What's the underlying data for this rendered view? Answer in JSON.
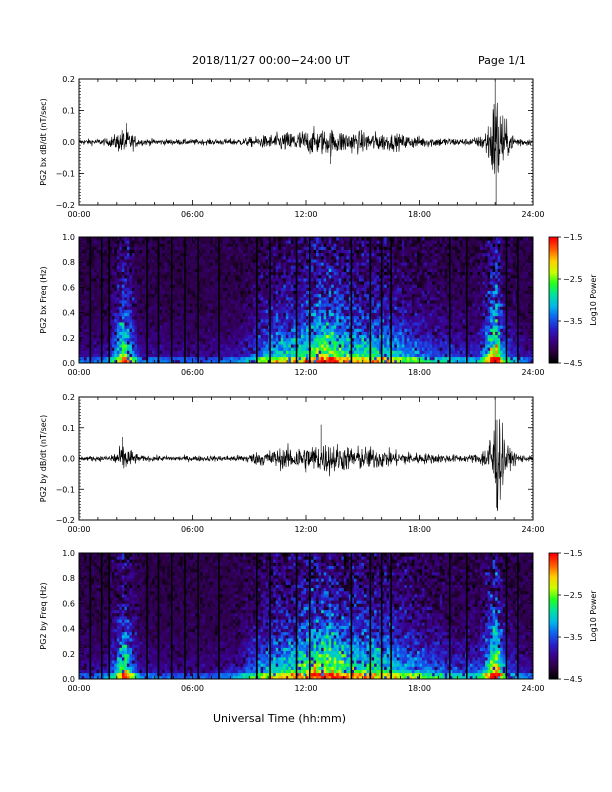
{
  "header": {
    "title": "2018/11/27  00:00−24:00 UT",
    "page": "Page 1/1",
    "xlabel": "Universal Time (hh:mm)"
  },
  "colors": {
    "spectrogram_colormap": [
      "#000000",
      "#2b0040",
      "#3a0088",
      "#2a20c8",
      "#1060f0",
      "#00b8e8",
      "#00e0a0",
      "#20ff20",
      "#c8ff00",
      "#ffd000",
      "#ff6000",
      "#ff0000"
    ]
  },
  "chart_data": [
    {
      "type": "line",
      "title": "",
      "xlabel": "",
      "ylabel": "PG2 bx dB/dt (nT/sec)",
      "xlim": [
        0,
        24
      ],
      "ylim": [
        -0.2,
        0.2
      ],
      "x_tick_labels": [
        "00:00",
        "06:00",
        "12:00",
        "18:00",
        "24:00"
      ],
      "y_tick_labels": [
        "0.2",
        "0.1",
        "0.0",
        "−0.1",
        "−0.2"
      ],
      "y_ticks": [
        0.2,
        0.1,
        0.0,
        -0.1,
        -0.2
      ],
      "envelope": {
        "hours": [
          0,
          1.5,
          2.0,
          2.4,
          2.8,
          3.2,
          5,
          7,
          8.5,
          9.5,
          10.5,
          11.5,
          12.5,
          13.3,
          14,
          15.5,
          16.5,
          18,
          19.5,
          20.5,
          21.2,
          21.6,
          21.9,
          22.1,
          22.4,
          22.8,
          23.5,
          24
        ],
        "amplitude": [
          0.01,
          0.012,
          0.03,
          0.05,
          0.03,
          0.012,
          0.01,
          0.01,
          0.012,
          0.02,
          0.03,
          0.04,
          0.045,
          0.045,
          0.04,
          0.035,
          0.03,
          0.02,
          0.015,
          0.012,
          0.02,
          0.06,
          0.15,
          0.19,
          0.1,
          0.03,
          0.015,
          0.01
        ]
      },
      "spikes": [
        {
          "hour": 22.0,
          "value": 0.19
        },
        {
          "hour": 22.05,
          "value": -0.2
        },
        {
          "hour": 13.3,
          "value": -0.07
        },
        {
          "hour": 2.5,
          "value": 0.06
        }
      ]
    },
    {
      "type": "heatmap",
      "title": "",
      "xlabel": "",
      "ylabel": "PG2 bx Freq (Hz)",
      "xlim": [
        0,
        24
      ],
      "ylim": [
        0.0,
        1.0
      ],
      "x_tick_labels": [
        "00:00",
        "06:00",
        "12:00",
        "18:00",
        "24:00"
      ],
      "y_tick_labels": [
        "1.0",
        "0.8",
        "0.6",
        "0.4",
        "0.2",
        "0.0"
      ],
      "y_ticks": [
        1.0,
        0.8,
        0.6,
        0.4,
        0.2,
        0.0
      ],
      "colorbar": {
        "label": "Log10 Power",
        "range": [
          -4.5,
          -1.5
        ],
        "tick_labels": [
          "−1.5",
          "−2.5",
          "−3.5",
          "−4.5"
        ],
        "ticks": [
          -1.5,
          -2.5,
          -3.5,
          -4.5
        ]
      },
      "activity": {
        "hours": [
          0,
          1.5,
          2.0,
          2.4,
          2.8,
          3.2,
          5,
          7,
          8.5,
          9.5,
          10.5,
          11.5,
          12.5,
          13.3,
          14,
          15.5,
          16.5,
          18,
          19.5,
          20.5,
          21.2,
          21.6,
          21.9,
          22.1,
          22.4,
          22.8,
          23.5,
          24
        ],
        "level": [
          0.15,
          0.2,
          0.5,
          0.8,
          0.5,
          0.2,
          0.15,
          0.15,
          0.2,
          0.4,
          0.55,
          0.6,
          0.75,
          0.8,
          0.65,
          0.6,
          0.55,
          0.4,
          0.3,
          0.25,
          0.3,
          0.6,
          0.85,
          0.9,
          0.5,
          0.3,
          0.2,
          0.15
        ]
      },
      "data_gaps_hours": [
        0.6,
        1.2,
        1.6,
        3.6,
        4.2,
        4.9,
        5.6,
        6.3,
        7.4,
        9.4,
        10.1,
        11.5,
        12.2,
        14.4,
        15.4,
        16.0,
        16.5,
        19.6,
        20.5,
        22.6,
        23.2
      ]
    },
    {
      "type": "line",
      "title": "",
      "xlabel": "",
      "ylabel": "PG2 by dB/dt (nT/sec)",
      "xlim": [
        0,
        24
      ],
      "ylim": [
        -0.2,
        0.2
      ],
      "x_tick_labels": [
        "00:00",
        "06:00",
        "12:00",
        "18:00",
        "24:00"
      ],
      "y_tick_labels": [
        "0.2",
        "0.1",
        "0.0",
        "−0.1",
        "−0.2"
      ],
      "y_ticks": [
        0.2,
        0.1,
        0.0,
        -0.1,
        -0.2
      ],
      "envelope": {
        "hours": [
          0,
          1.5,
          2.0,
          2.4,
          2.8,
          3.2,
          5,
          7,
          8.5,
          9.5,
          10.5,
          11.5,
          12.5,
          13.3,
          14,
          15.5,
          16.5,
          18,
          19.5,
          20.5,
          21.2,
          21.6,
          21.9,
          22.1,
          22.4,
          22.8,
          23.5,
          24
        ],
        "amplitude": [
          0.008,
          0.01,
          0.03,
          0.05,
          0.03,
          0.01,
          0.01,
          0.01,
          0.012,
          0.025,
          0.035,
          0.045,
          0.05,
          0.06,
          0.045,
          0.04,
          0.03,
          0.02,
          0.015,
          0.012,
          0.02,
          0.06,
          0.15,
          0.2,
          0.1,
          0.03,
          0.012,
          0.008
        ]
      },
      "spikes": [
        {
          "hour": 22.0,
          "value": 0.2
        },
        {
          "hour": 22.08,
          "value": -0.16
        },
        {
          "hour": 12.8,
          "value": 0.11
        },
        {
          "hour": 2.3,
          "value": 0.07
        }
      ]
    },
    {
      "type": "heatmap",
      "title": "",
      "xlabel": "",
      "ylabel": "PG2 by Freq (Hz)",
      "xlim": [
        0,
        24
      ],
      "ylim": [
        0.0,
        1.0
      ],
      "x_tick_labels": [
        "00:00",
        "06:00",
        "12:00",
        "18:00",
        "24:00"
      ],
      "y_tick_labels": [
        "1.0",
        "0.8",
        "0.6",
        "0.4",
        "0.2",
        "0.0"
      ],
      "y_ticks": [
        1.0,
        0.8,
        0.6,
        0.4,
        0.2,
        0.0
      ],
      "colorbar": {
        "label": "Log10 Power",
        "range": [
          -4.5,
          -1.5
        ],
        "tick_labels": [
          "−1.5",
          "−2.5",
          "−3.5",
          "−4.5"
        ],
        "ticks": [
          -1.5,
          -2.5,
          -3.5,
          -4.5
        ]
      },
      "activity": {
        "hours": [
          0,
          1.5,
          2.0,
          2.4,
          2.8,
          3.2,
          5,
          7,
          8.5,
          9.5,
          10.5,
          11.5,
          12.5,
          13.3,
          14,
          15.5,
          16.5,
          18,
          19.5,
          20.5,
          21.2,
          21.6,
          21.9,
          22.1,
          22.4,
          22.8,
          23.5,
          24
        ],
        "level": [
          0.15,
          0.2,
          0.5,
          0.8,
          0.5,
          0.2,
          0.15,
          0.15,
          0.25,
          0.45,
          0.6,
          0.65,
          0.8,
          0.85,
          0.7,
          0.65,
          0.6,
          0.45,
          0.35,
          0.3,
          0.35,
          0.6,
          0.85,
          0.9,
          0.5,
          0.3,
          0.2,
          0.15
        ]
      },
      "data_gaps_hours": [
        0.6,
        1.2,
        1.6,
        3.6,
        4.2,
        4.9,
        5.6,
        6.3,
        7.4,
        9.4,
        10.1,
        11.5,
        12.2,
        14.4,
        15.4,
        16.0,
        16.5,
        19.6,
        20.5,
        22.6,
        23.2
      ]
    }
  ]
}
